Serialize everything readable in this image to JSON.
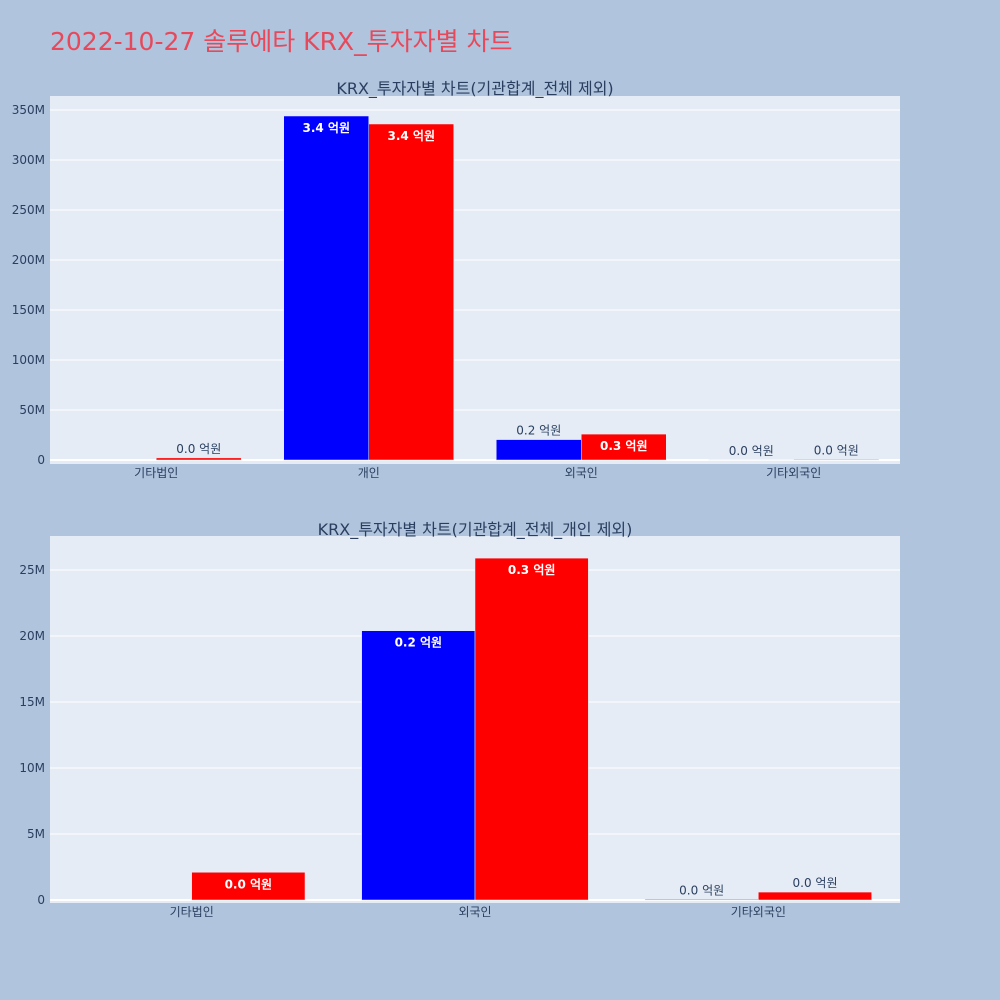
{
  "page": {
    "title": "2022-10-27 솔루에타 KRX_투자자별 차트"
  },
  "chart_data": [
    {
      "type": "bar",
      "title": "KRX_투자자별 차트(기관합계_전체 제외)",
      "categories": [
        "기타법인",
        "개인",
        "외국인",
        "기타외국인"
      ],
      "series": [
        {
          "color": "#0000ff",
          "values": [
            0,
            344000000,
            20400000,
            50000
          ],
          "labels": [
            "",
            "3.4 억원",
            "0.2 억원",
            "0.0 억원"
          ]
        },
        {
          "color": "#ff0000",
          "values": [
            2100000,
            336000000,
            25900000,
            600000
          ],
          "labels": [
            "0.0 억원",
            "3.4 억원",
            "0.3 억원",
            "0.0 억원"
          ]
        }
      ],
      "ylim": [
        0,
        365000000
      ],
      "yticks": [
        0,
        50000000,
        100000000,
        150000000,
        200000000,
        250000000,
        300000000,
        350000000
      ],
      "ytick_labels": [
        "0",
        "50M",
        "100M",
        "150M",
        "200M",
        "250M",
        "300M",
        "350M"
      ],
      "grid": true
    },
    {
      "type": "bar",
      "title": "KRX_투자자별 차트(기관합계_전체_개인 제외)",
      "categories": [
        "기타법인",
        "외국인",
        "기타외국인"
      ],
      "series": [
        {
          "color": "#0000ff",
          "values": [
            0,
            20400000,
            50000
          ],
          "labels": [
            "",
            "0.2 억원",
            "0.0 억원"
          ]
        },
        {
          "color": "#ff0000",
          "values": [
            2100000,
            25900000,
            600000
          ],
          "labels": [
            "0.0 억원",
            "0.3 억원",
            "0.0 억원"
          ]
        }
      ],
      "ylim": [
        0,
        27500000
      ],
      "yticks": [
        0,
        5000000,
        10000000,
        15000000,
        20000000,
        25000000
      ],
      "ytick_labels": [
        "0",
        "5M",
        "10M",
        "15M",
        "20M",
        "25M"
      ],
      "grid": true
    }
  ]
}
